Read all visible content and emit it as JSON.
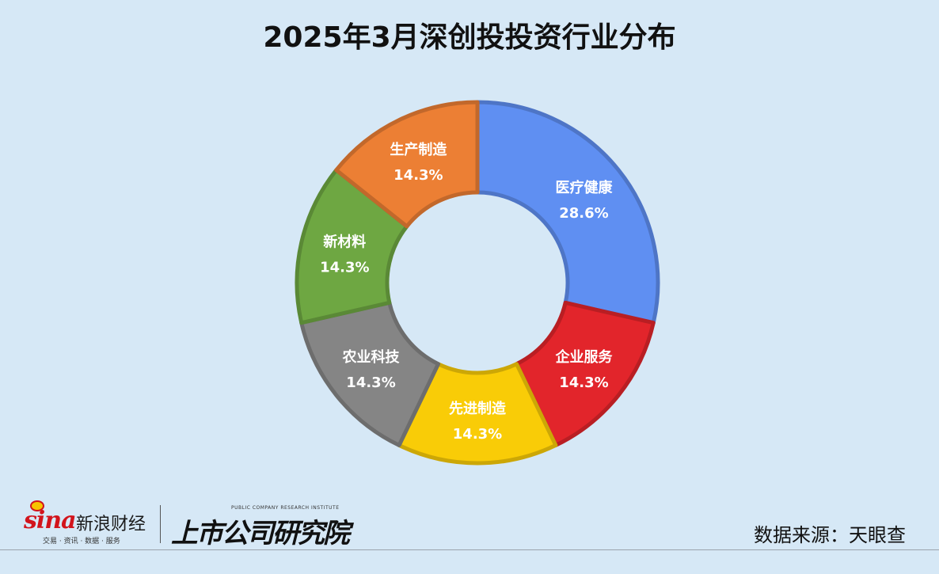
{
  "title": "2025年3月深创投投资行业分布",
  "source": "数据来源：天眼查",
  "branding": {
    "sina_logo": "sina",
    "sina_name": "新浪财经",
    "sina_sub": "交易 · 资讯 · 数据 · 服务",
    "institute_small": "PUBLIC COMPANY RESEARCH INSTITUTE",
    "institute_name": "上市公司研究院"
  },
  "chart_data": {
    "type": "pie",
    "donut": true,
    "title": "2025年3月深创投投资行业分布",
    "slices": [
      {
        "label": "医疗健康",
        "value": 28.6,
        "display": "28.6%",
        "color": "#5f8ff2"
      },
      {
        "label": "企业服务",
        "value": 14.3,
        "display": "14.3%",
        "color": "#e2252b"
      },
      {
        "label": "先进制造",
        "value": 14.3,
        "display": "14.3%",
        "color": "#f9cc07"
      },
      {
        "label": "农业科技",
        "value": 14.3,
        "display": "14.3%",
        "color": "#858585"
      },
      {
        "label": "新材料",
        "value": 14.3,
        "display": "14.3%",
        "color": "#6ea742"
      },
      {
        "label": "生产制造",
        "value": 14.3,
        "display": "14.3%",
        "color": "#ec7f34"
      }
    ]
  }
}
